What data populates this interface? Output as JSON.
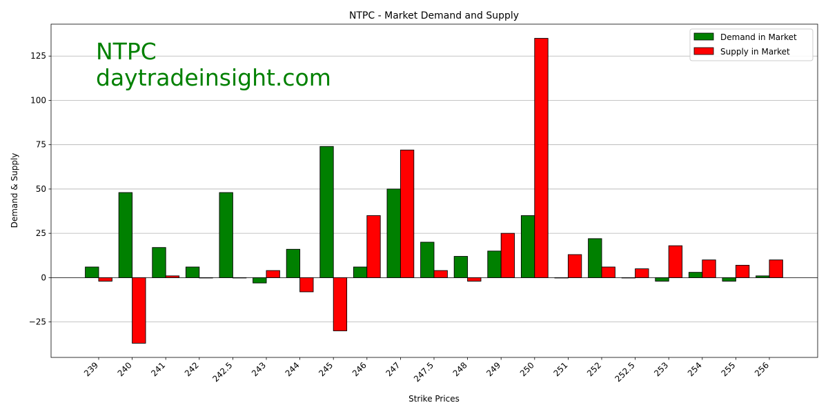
{
  "chart_data": {
    "type": "bar",
    "title": "NTPC - Market Demand and Supply",
    "xlabel": "Strike Prices",
    "ylabel": "Demand & Supply",
    "ylim": [
      -45,
      143
    ],
    "yticks": [
      -25,
      0,
      25,
      50,
      75,
      100,
      125
    ],
    "grid": "y",
    "legend_position": "top-right",
    "categories": [
      "239",
      "240",
      "241",
      "242",
      "242.5",
      "243",
      "244",
      "245",
      "246",
      "247",
      "247.5",
      "248",
      "249",
      "250",
      "251",
      "252",
      "252.5",
      "253",
      "254",
      "255",
      "256"
    ],
    "series": [
      {
        "name": "Demand in Market",
        "color": "#008000",
        "values": [
          6,
          48,
          17,
          6,
          48,
          -3,
          16,
          74,
          6,
          50,
          20,
          12,
          15,
          35,
          0,
          22,
          0,
          -2,
          3,
          -2,
          1
        ]
      },
      {
        "name": "Supply in Market",
        "color": "#ff0000",
        "values": [
          -2,
          -37,
          1,
          0,
          0,
          4,
          -8,
          -30,
          35,
          72,
          4,
          -2,
          25,
          135,
          13,
          6,
          5,
          18,
          10,
          7,
          10
        ]
      }
    ],
    "watermark": [
      "NTPC",
      "daytradeinsight.com"
    ],
    "watermark_color": "#008000"
  }
}
